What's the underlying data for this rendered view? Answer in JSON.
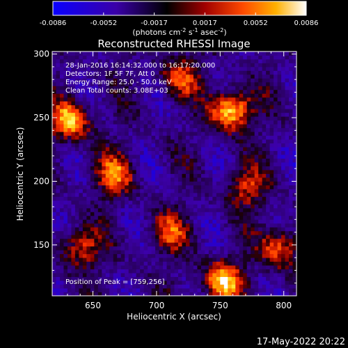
{
  "chart_data": {
    "type": "heatmap",
    "title": "Reconstructed RHESSI Image",
    "xlabel": "Heliocentric X (arcsec)",
    "ylabel": "Heliocentric Y (arcsec)",
    "xlim": [
      618,
      810
    ],
    "ylim": [
      110,
      302
    ],
    "x_ticks": [
      650,
      700,
      750,
      800
    ],
    "y_ticks": [
      150,
      200,
      250,
      300
    ],
    "colorbar": {
      "min": -0.0086,
      "max": 0.0086,
      "ticks": [
        "-0.0086",
        "-0.0052",
        "-0.0017",
        "0.0017",
        "0.0052",
        "0.0086"
      ],
      "unit_label": "(photons cm",
      "unit_sup1": "-2",
      "unit_mid": " s",
      "unit_sup2": "-1",
      "unit_mid2": " asec",
      "unit_sup3": "-2",
      "unit_end": ")"
    },
    "annotations": [
      "28-Jan-2016 16:14:32.000 to 16:17:20.000",
      "Detectors: 1F 5F 7F, Att 0",
      "Energy Range: 25.0 - 50.0 keV",
      "Clean     Total counts: 3.08E+03"
    ],
    "peak_label": "Position of Peak = [759,256]",
    "peak_position": [
      759,
      256
    ],
    "sources": [
      {
        "x": 759,
        "y": 256,
        "value": 0.0086
      },
      {
        "x": 632,
        "y": 248,
        "value": 0.007
      },
      {
        "x": 752,
        "y": 122,
        "value": 0.0072
      },
      {
        "x": 798,
        "y": 148,
        "value": 0.005
      },
      {
        "x": 640,
        "y": 148,
        "value": 0.004
      },
      {
        "x": 666,
        "y": 205,
        "value": 0.0045
      },
      {
        "x": 718,
        "y": 282,
        "value": 0.0035
      },
      {
        "x": 710,
        "y": 160,
        "value": 0.003
      },
      {
        "x": 770,
        "y": 195,
        "value": 0.003
      }
    ],
    "grid": false,
    "colormap": [
      "#0000ff",
      "#000000",
      "#ff0000",
      "#ffff00",
      "#ffffff"
    ]
  },
  "footer": {
    "date": "17-May-2022 20:22"
  }
}
